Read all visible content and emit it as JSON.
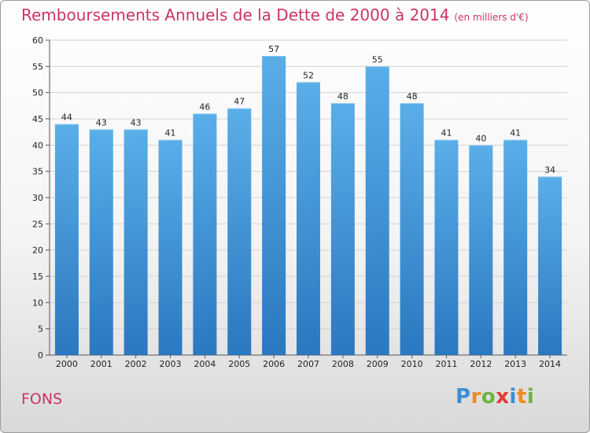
{
  "title": "Remboursements Annuels de la Dette de 2000 à 2014",
  "subtitle": "(en milliers d'€)",
  "place": "FONS",
  "logo": {
    "letters": [
      "P",
      "r",
      "o",
      "x",
      "i",
      "t",
      "i"
    ],
    "colors": [
      "#3a8fd6",
      "#f08a1c",
      "#6cb33f",
      "#e53935",
      "#3a8fd6",
      "#f08a1c",
      "#6cb33f"
    ]
  },
  "chart_data": {
    "type": "bar",
    "title": "Remboursements Annuels de la Dette de 2000 à 2014",
    "subtitle": "(en milliers d'€)",
    "categories": [
      "2000",
      "2001",
      "2002",
      "2003",
      "2004",
      "2005",
      "2006",
      "2007",
      "2008",
      "2009",
      "2010",
      "2011",
      "2012",
      "2013",
      "2014"
    ],
    "values": [
      44,
      43,
      43,
      41,
      46,
      47,
      57,
      52,
      48,
      55,
      48,
      41,
      40,
      41,
      34
    ],
    "yticks": [
      0,
      5,
      10,
      15,
      20,
      25,
      30,
      35,
      40,
      45,
      50,
      55,
      60
    ],
    "ylim": [
      0,
      60
    ],
    "grid": true,
    "bar_color": "#4d9fe0"
  }
}
